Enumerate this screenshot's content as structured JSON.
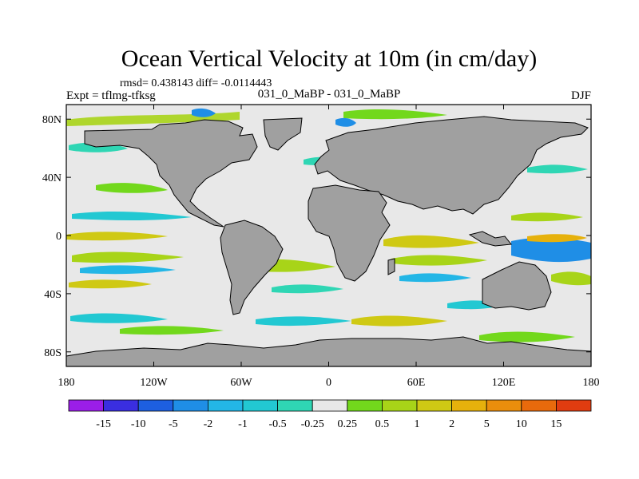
{
  "title": "Ocean Vertical Velocity at 10m (in cm/day)",
  "stats_line": "rmsd= 0.438143 diff= -0.0114443",
  "subtitle_center": "031_0_MaBP - 031_0_MaBP",
  "subtitle_left": "Expt = tflmg-tfksg",
  "subtitle_right": "DJF",
  "x_ticks": [
    {
      "label": "180",
      "lon": -180
    },
    {
      "label": "120W",
      "lon": -120
    },
    {
      "label": "60W",
      "lon": -60
    },
    {
      "label": "0",
      "lon": 0
    },
    {
      "label": "60E",
      "lon": 60
    },
    {
      "label": "120E",
      "lon": 120
    },
    {
      "label": "180",
      "lon": 180
    }
  ],
  "y_ticks": [
    {
      "label": "80N",
      "lat": 80
    },
    {
      "label": "40N",
      "lat": 40
    },
    {
      "label": "0",
      "lat": 0
    },
    {
      "label": "40S",
      "lat": -40
    },
    {
      "label": "80S",
      "lat": -80
    }
  ],
  "lat_range": [
    -90,
    90
  ],
  "lon_range": [
    -180,
    180
  ],
  "colorbar": {
    "colors": [
      "#9b1ee8",
      "#3a2ee0",
      "#1d5fe0",
      "#1f8ee6",
      "#23b6e6",
      "#22c8d2",
      "#2fd6b4",
      "#e8e8e8",
      "#72d81c",
      "#a8d418",
      "#cfc914",
      "#e6b10c",
      "#ea8e0c",
      "#e86a0c",
      "#e03c10"
    ],
    "labels": [
      "-15",
      "-10",
      "-5",
      "-2",
      "-1",
      "-0.5",
      "-0.25",
      "0.25",
      "0.5",
      "1",
      "2",
      "5",
      "10",
      "15"
    ]
  },
  "colors": {
    "land": "#a0a0a0",
    "ocean_neutral": "#e8e8e8"
  }
}
